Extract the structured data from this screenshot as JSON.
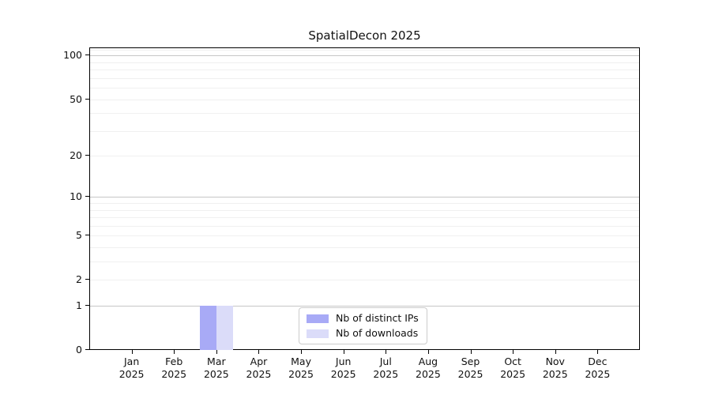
{
  "figure": {
    "background": "#ffffff"
  },
  "chart_data": {
    "type": "bar",
    "title": "SpatialDecon 2025",
    "xlabel": "",
    "ylabel": "",
    "categories": [
      "Jan 2025",
      "Feb 2025",
      "Mar 2025",
      "Apr 2025",
      "May 2025",
      "Jun 2025",
      "Jul 2025",
      "Aug 2025",
      "Sep 2025",
      "Oct 2025",
      "Nov 2025",
      "Dec 2025"
    ],
    "series": [
      {
        "name": "Nb of distinct IPs",
        "color": "#a8aaf6",
        "values": [
          0,
          0,
          1,
          0,
          0,
          0,
          0,
          0,
          0,
          0,
          0,
          0
        ]
      },
      {
        "name": "Nb of downloads",
        "color": "#dbdcf9",
        "values": [
          0,
          0,
          1,
          0,
          0,
          0,
          0,
          0,
          0,
          0,
          0,
          0
        ]
      }
    ],
    "y_scale": "log1p",
    "y_ticks": [
      0,
      1,
      2,
      5,
      10,
      20,
      50,
      100
    ],
    "y_max": 114,
    "grid": {
      "major_values": [
        1,
        10,
        100
      ],
      "minor_values": [
        2,
        3,
        4,
        5,
        6,
        7,
        8,
        9,
        20,
        30,
        40,
        50,
        60,
        70,
        80,
        90,
        110
      ]
    },
    "legend": {
      "position": "bottom-center-inside",
      "entries": [
        "Nb of distinct IPs",
        "Nb of downloads"
      ]
    }
  }
}
